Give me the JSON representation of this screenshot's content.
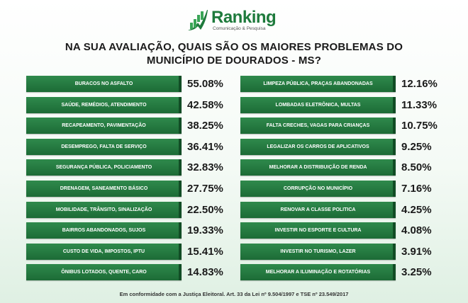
{
  "logo": {
    "name": "Ranking",
    "tagline": "Comunicação & Pesquisa"
  },
  "chart_data": {
    "type": "table",
    "title": "NA SUA AVALIAÇÃO, QUAIS SÃO OS MAIORES PROBLEMAS DO MUNICÍPIO DE DOURADOS - MS?",
    "left": [
      {
        "label": "BURACOS NO ASFALTO",
        "value": "55.08%"
      },
      {
        "label": "SAÚDE, REMÉDIOS, ATENDIMENTO",
        "value": "42.58%"
      },
      {
        "label": "RECAPEAMENTO, PAVIMENTAÇÃO",
        "value": "38.25%"
      },
      {
        "label": "DESEMPREGO, FALTA DE SERVIÇO",
        "value": "36.41%"
      },
      {
        "label": "SEGURANÇA PÚBLICA, POLICIAMENTO",
        "value": "32.83%"
      },
      {
        "label": "DRENAGEM, SANEAMENTO BÁSICO",
        "value": "27.75%"
      },
      {
        "label": "MOBILIDADE, TRÂNSITO, SINALIZAÇÃO",
        "value": "22.50%"
      },
      {
        "label": "BAIRROS ABANDONADOS, SUJOS",
        "value": "19.33%"
      },
      {
        "label": "CUSTO DE VIDA, IMPOSTOS, IPTU",
        "value": "15.41%"
      },
      {
        "label": "ÔNIBUS LOTADOS, QUENTE, CARO",
        "value": "14.83%"
      }
    ],
    "right": [
      {
        "label": "LIMPEZA PÚBLICA, PRAÇAS ABANDONADAS",
        "value": "12.16%"
      },
      {
        "label": "LOMBADAS ELETRÔNICA, MULTAS",
        "value": "11.33%"
      },
      {
        "label": "FALTA CRECHES, VAGAS PARA CRIANÇAS",
        "value": "10.75%"
      },
      {
        "label": "LEGALIZAR OS CARROS DE APLICATIVOS",
        "value": "9.25%"
      },
      {
        "label": "MELHORAR A DISTRIBUIÇÃO DE RENDA",
        "value": "8.50%"
      },
      {
        "label": "CORRUPÇÃO NO MUNICÍPIO",
        "value": "7.16%"
      },
      {
        "label": "RENOVAR A CLASSE POLITICA",
        "value": "4.25%"
      },
      {
        "label": "INVESTIR NO ESPORTE E CULTURA",
        "value": "4.08%"
      },
      {
        "label": "INVESTIR NO TURISMO, LAZER",
        "value": "3.91%"
      },
      {
        "label": "MELHORAR A ILUMINAÇÃO E ROTATÓRIAS",
        "value": "3.25%"
      }
    ]
  },
  "footer": "Em conformidade com a Justiça Eleitoral. Art. 33 da Lei nº 9.504/1997 e TSE nº 23.549/2017",
  "colors": {
    "bar": "#1c6b36",
    "bar_light": "#2f8a4c",
    "logo": "#1e7a3c"
  }
}
